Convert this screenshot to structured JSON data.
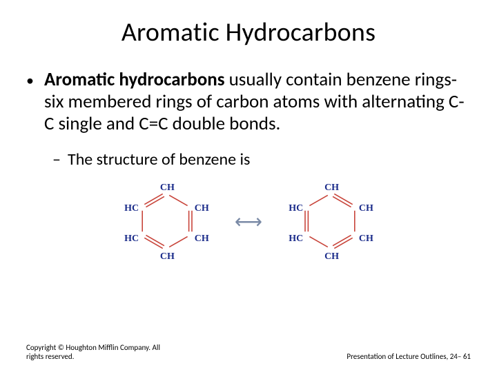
{
  "title": "Aromatic Hydrocarbons",
  "bullet1_bold": "Aromatic hydrocarbons",
  "bullet1_rest": " usually contain benzene rings-six membered rings of carbon atoms with alternating C-C single and C=C double bonds.",
  "bullet2": "The structure of benzene is",
  "bullet1_marker": "•",
  "bullet2_marker": "–",
  "arrow_glyph": "⟷",
  "atoms": {
    "top": "CH",
    "tr": "CH",
    "br": "CH",
    "bot": "CH",
    "bl": "HC",
    "tl": "HC"
  },
  "bond_color": "#c8443a",
  "atom_color": "#1a2b8a",
  "ring_a": {
    "doubles": [
      "tl-top",
      "tr-br",
      "bot-bl"
    ]
  },
  "ring_b": {
    "doubles": [
      "top-tr",
      "br-bot",
      "bl-tl"
    ]
  },
  "footer_left": "Copyright © Houghton Mifflin Company. All rights reserved.",
  "footer_right": "Presentation of Lecture Outlines, 24– 61"
}
